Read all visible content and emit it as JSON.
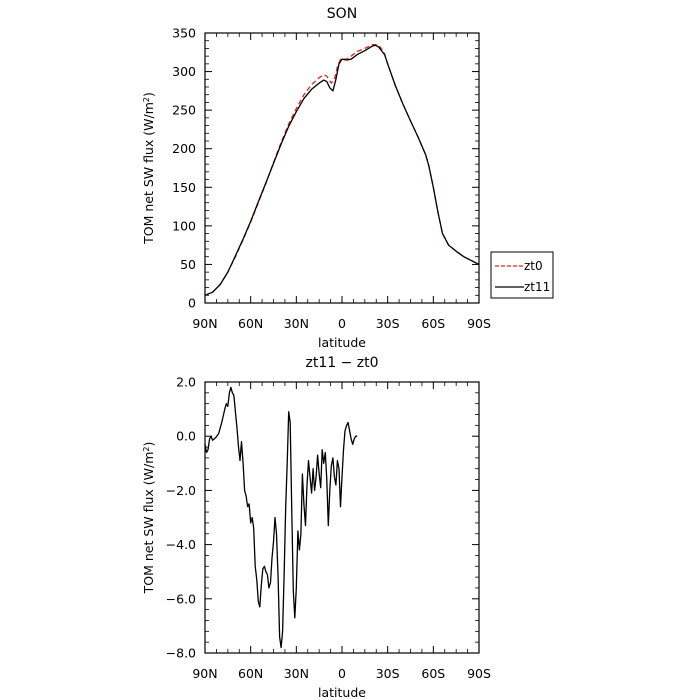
{
  "chart_data": [
    {
      "type": "line",
      "title": "SON",
      "xlabel": "latitude",
      "ylabel": "TOM net SW flux (W/m²)",
      "xlim": [
        90,
        -90
      ],
      "ylim": [
        0,
        350
      ],
      "x_ticks": [
        90,
        60,
        30,
        0,
        -30,
        -60,
        -90
      ],
      "x_tick_labels": [
        "90N",
        "60N",
        "30N",
        "0",
        "30S",
        "60S",
        "90S"
      ],
      "y_ticks": [
        0,
        50,
        100,
        150,
        200,
        250,
        300,
        350
      ],
      "y_tick_labels": [
        "0",
        "50",
        "100",
        "150",
        "200",
        "250",
        "300",
        "350"
      ],
      "grid": false,
      "legend": "right",
      "series": [
        {
          "name": "zt0",
          "color": "#e8201e",
          "dash": "dashed",
          "points": [
            [
              90,
              10
            ],
            [
              85,
              14
            ],
            [
              80,
              24
            ],
            [
              75,
              40
            ],
            [
              70,
              60
            ],
            [
              65,
              82
            ],
            [
              60,
              105
            ],
            [
              55,
              130
            ],
            [
              50,
              155
            ],
            [
              45,
              182
            ],
            [
              40,
              208
            ],
            [
              35,
              232
            ],
            [
              30,
              252
            ],
            [
              25,
              270
            ],
            [
              20,
              283
            ],
            [
              15,
              292
            ],
            [
              12,
              296
            ],
            [
              10,
              294
            ],
            [
              7,
              285
            ],
            [
              5,
              290
            ],
            [
              3,
              306
            ],
            [
              1,
              316
            ],
            [
              -3,
              316
            ],
            [
              -6,
              320
            ],
            [
              -10,
              326
            ],
            [
              -15,
              330
            ],
            [
              -20,
              335
            ],
            [
              -23,
              335
            ],
            [
              -25,
              332
            ],
            [
              -28,
              323
            ],
            [
              -30,
              310
            ],
            [
              -35,
              282
            ],
            [
              -40,
              258
            ],
            [
              -45,
              236
            ],
            [
              -50,
              215
            ],
            [
              -55,
              192
            ],
            [
              -57,
              178
            ],
            [
              -60,
              150
            ],
            [
              -63,
              118
            ],
            [
              -66,
              90
            ],
            [
              -70,
              75
            ],
            [
              -75,
              67
            ],
            [
              -80,
              60
            ],
            [
              -85,
              55
            ],
            [
              -90,
              50
            ]
          ]
        },
        {
          "name": "zt11",
          "color": "#000000",
          "dash": "solid",
          "points": [
            [
              90,
              10
            ],
            [
              85,
              14
            ],
            [
              80,
              24
            ],
            [
              75,
              40
            ],
            [
              70,
              61
            ],
            [
              65,
              83
            ],
            [
              60,
              106
            ],
            [
              55,
              131
            ],
            [
              50,
              156
            ],
            [
              45,
              181
            ],
            [
              40,
              206
            ],
            [
              35,
              229
            ],
            [
              30,
              248
            ],
            [
              25,
              265
            ],
            [
              20,
              277
            ],
            [
              15,
              285
            ],
            [
              12,
              289
            ],
            [
              10,
              287
            ],
            [
              8,
              279
            ],
            [
              6,
              275
            ],
            [
              4,
              290
            ],
            [
              2,
              310
            ],
            [
              0,
              316
            ],
            [
              -3,
              315
            ],
            [
              -6,
              316
            ],
            [
              -10,
              322
            ],
            [
              -15,
              327
            ],
            [
              -20,
              333
            ],
            [
              -22,
              334
            ],
            [
              -24,
              332
            ],
            [
              -28,
              322
            ],
            [
              -30,
              310
            ],
            [
              -35,
              282
            ],
            [
              -40,
              258
            ],
            [
              -45,
              236
            ],
            [
              -50,
              215
            ],
            [
              -55,
              192
            ],
            [
              -57,
              178
            ],
            [
              -60,
              150
            ],
            [
              -63,
              118
            ],
            [
              -66,
              90
            ],
            [
              -70,
              75
            ],
            [
              -75,
              67
            ],
            [
              -80,
              60
            ],
            [
              -85,
              55
            ],
            [
              -90,
              50
            ]
          ]
        }
      ]
    },
    {
      "type": "line",
      "title": "zt11 − zt0",
      "xlabel": "latitude",
      "ylabel": "TOM net SW flux (W/m²)",
      "xlim": [
        90,
        -90
      ],
      "ylim": [
        -8,
        2
      ],
      "x_ticks": [
        90,
        60,
        30,
        0,
        -30,
        -60,
        -90
      ],
      "x_tick_labels": [
        "90N",
        "60N",
        "30N",
        "0",
        "30S",
        "60S",
        "90S"
      ],
      "y_ticks": [
        -8,
        -6,
        -4,
        -2,
        0,
        2
      ],
      "y_tick_labels": [
        "−8.0",
        "−6.0",
        "−4.0",
        "−2.0",
        "0.0",
        "2.0"
      ],
      "grid": false,
      "series": [
        {
          "name": "",
          "color": "#000000",
          "dash": "solid",
          "points": [
            [
              90,
              -0.3
            ],
            [
              89,
              -0.6
            ],
            [
              88,
              -0.5
            ],
            [
              87,
              -0.1
            ],
            [
              86,
              0.0
            ],
            [
              85,
              -0.15
            ],
            [
              83,
              -0.05
            ],
            [
              81,
              0.1
            ],
            [
              79,
              0.5
            ],
            [
              77,
              1.0
            ],
            [
              76,
              1.2
            ],
            [
              75,
              1.1
            ],
            [
              74,
              1.6
            ],
            [
              73,
              1.8
            ],
            [
              72,
              1.6
            ],
            [
              71,
              1.5
            ],
            [
              70,
              0.9
            ],
            [
              69,
              0.3
            ],
            [
              68,
              -0.4
            ],
            [
              67,
              -0.9
            ],
            [
              66,
              -0.2
            ],
            [
              65,
              -1.0
            ],
            [
              64,
              -2.0
            ],
            [
              63,
              -2.2
            ],
            [
              62,
              -2.6
            ],
            [
              61,
              -2.5
            ],
            [
              60,
              -3.2
            ],
            [
              59,
              -3.0
            ],
            [
              58,
              -3.4
            ],
            [
              57,
              -4.8
            ],
            [
              56,
              -5.3
            ],
            [
              55,
              -6.1
            ],
            [
              54,
              -6.3
            ],
            [
              53,
              -5.5
            ],
            [
              52,
              -4.9
            ],
            [
              51,
              -4.8
            ],
            [
              50,
              -5.0
            ],
            [
              49,
              -5.1
            ],
            [
              48,
              -5.6
            ],
            [
              47,
              -5.4
            ],
            [
              46,
              -4.5
            ],
            [
              45,
              -3.9
            ],
            [
              44,
              -3.0
            ],
            [
              43,
              -3.6
            ],
            [
              42,
              -5.2
            ],
            [
              41,
              -7.4
            ],
            [
              40,
              -7.8
            ],
            [
              39,
              -7.2
            ],
            [
              38,
              -5.0
            ],
            [
              37,
              -2.6
            ],
            [
              36,
              -1.0
            ],
            [
              35,
              0.9
            ],
            [
              34,
              0.5
            ],
            [
              33,
              -2.8
            ],
            [
              32,
              -5.7
            ],
            [
              31,
              -6.7
            ],
            [
              30,
              -5.6
            ],
            [
              29,
              -3.5
            ],
            [
              28,
              -4.2
            ],
            [
              27,
              -3.6
            ],
            [
              26,
              -1.4
            ],
            [
              25,
              -2.5
            ],
            [
              24,
              -3.3
            ],
            [
              23,
              -1.8
            ],
            [
              22,
              -0.9
            ],
            [
              21,
              -1.5
            ],
            [
              20,
              -2.1
            ],
            [
              19,
              -1.2
            ],
            [
              18,
              -2.0
            ],
            [
              17,
              -1.5
            ],
            [
              16,
              -0.7
            ],
            [
              15,
              -1.4
            ],
            [
              14,
              -1.9
            ],
            [
              13,
              -0.5
            ],
            [
              12,
              -1.0
            ],
            [
              11,
              -0.6
            ],
            [
              10,
              -1.6
            ],
            [
              9,
              -3.3
            ],
            [
              8,
              -2.0
            ],
            [
              7,
              -1.1
            ],
            [
              6,
              -0.8
            ],
            [
              5,
              -1.5
            ],
            [
              4,
              -1.8
            ],
            [
              3,
              -0.9
            ],
            [
              2,
              -1.2
            ],
            [
              1,
              -2.6
            ],
            [
              0,
              -1.5
            ],
            [
              -1,
              -0.5
            ],
            [
              -2,
              0.2
            ],
            [
              -3,
              0.4
            ],
            [
              -4,
              0.5
            ],
            [
              -5,
              0.2
            ],
            [
              -6,
              -0.1
            ],
            [
              -7,
              -0.3
            ],
            [
              -8,
              -0.1
            ],
            [
              -9,
              0.0
            ],
            [
              -10,
              0.0
            ]
          ]
        }
      ]
    }
  ],
  "legend": {
    "entries": [
      {
        "label": "zt0",
        "color": "#e8201e",
        "dash": "dashed"
      },
      {
        "label": "zt11",
        "color": "#000000",
        "dash": "solid"
      }
    ]
  }
}
